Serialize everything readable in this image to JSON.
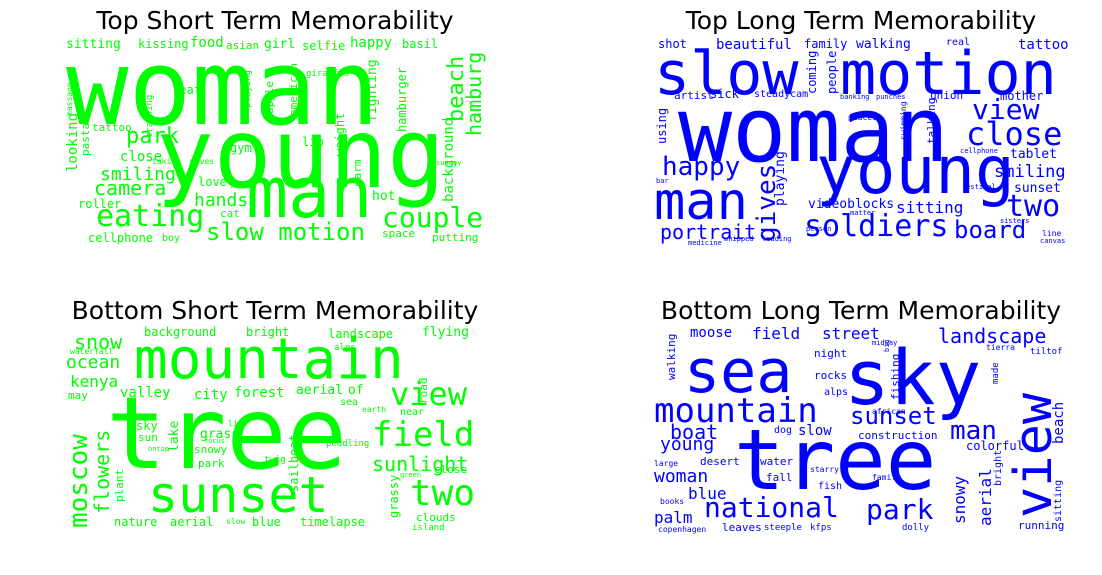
{
  "colors": {
    "short_term": "#00ff00",
    "long_term": "#0000ff"
  },
  "panels": [
    {
      "title": "Top Short Term Memorability",
      "color": "#00ff00",
      "words": [
        "woman",
        "young",
        "man",
        "eating",
        "couple",
        "slow motion",
        "camera",
        "smiling",
        "park",
        "hands",
        "beach",
        "hamburg",
        "background",
        "looking",
        "fighting",
        "hamburger",
        "sitting",
        "kissing",
        "food",
        "asian",
        "girl",
        "selfie",
        "happy",
        "basil",
        "close",
        "tattoo",
        "roller",
        "love",
        "cat",
        "hot",
        "weight",
        "warm",
        "lip",
        "gym",
        "apple",
        "american",
        "giraffes",
        "leaf",
        "playing",
        "pasta",
        "training",
        "massage",
        "cellphone",
        "boy",
        "space",
        "putting",
        "sunday",
        "xhr",
        "moves",
        "taking"
      ]
    },
    {
      "title": "Top Long Term Memorability",
      "color": "#0000ff",
      "words": [
        "slow",
        "motion",
        "woman",
        "young",
        "man",
        "close",
        "view",
        "happy",
        "gives",
        "soldiers",
        "board",
        "two",
        "portrait",
        "playing",
        "videoblocks",
        "sitting",
        "smiling",
        "sunset",
        "tablet",
        "tattoo",
        "shot",
        "beautiful",
        "family",
        "walking",
        "real",
        "coming",
        "people",
        "artist",
        "sick",
        "steadycam",
        "banking",
        "union",
        "mother",
        "using",
        "places",
        "punches",
        "swimming",
        "talking",
        "cellphone",
        "festival",
        "person",
        "matter",
        "sisters",
        "line",
        "canvas",
        "whipped",
        "loading",
        "medicine",
        "bar"
      ]
    },
    {
      "title": "Bottom Short Term Memorability",
      "color": "#00ff00",
      "words": [
        "mountain",
        "tree",
        "sunset",
        "moscow",
        "field",
        "two",
        "view",
        "sunlight",
        "flowers",
        "snow",
        "ocean",
        "kenya",
        "valley",
        "city",
        "forest",
        "aerial",
        "of",
        "sea",
        "road",
        "background",
        "bright",
        "landscape",
        "flying",
        "waterfall",
        "may",
        "alps",
        "lake",
        "grass",
        "sky",
        "sun",
        "snowy",
        "park",
        "life",
        "focus",
        "twig",
        "sailboat",
        "peddling",
        "grassy",
        "close",
        "clouds",
        "earth",
        "near",
        "nature",
        "aerial",
        "slow",
        "blue",
        "timelapse",
        "island",
        "plant",
        "ontop",
        "green"
      ]
    },
    {
      "title": "Bottom Long Term Memorability",
      "color": "#0000ff",
      "words": [
        "sky",
        "sea",
        "tree",
        "view",
        "mountain",
        "national",
        "park",
        "sunset",
        "man",
        "landscape",
        "boat",
        "young",
        "woman",
        "blue",
        "palm",
        "field",
        "street",
        "moose",
        "walking",
        "night",
        "rocks",
        "alps",
        "slow",
        "dog",
        "construction",
        "colorful",
        "water",
        "fall",
        "fish",
        "desert",
        "large",
        "starry",
        "family",
        "aerial",
        "snowy",
        "beach",
        "bright",
        "made",
        "fishing",
        "midway",
        "sitting",
        "running",
        "leaves",
        "steeple",
        "kfps",
        "dolly",
        "copenhagen",
        "books",
        "african",
        "tierra",
        "tiltof",
        "big"
      ]
    }
  ]
}
